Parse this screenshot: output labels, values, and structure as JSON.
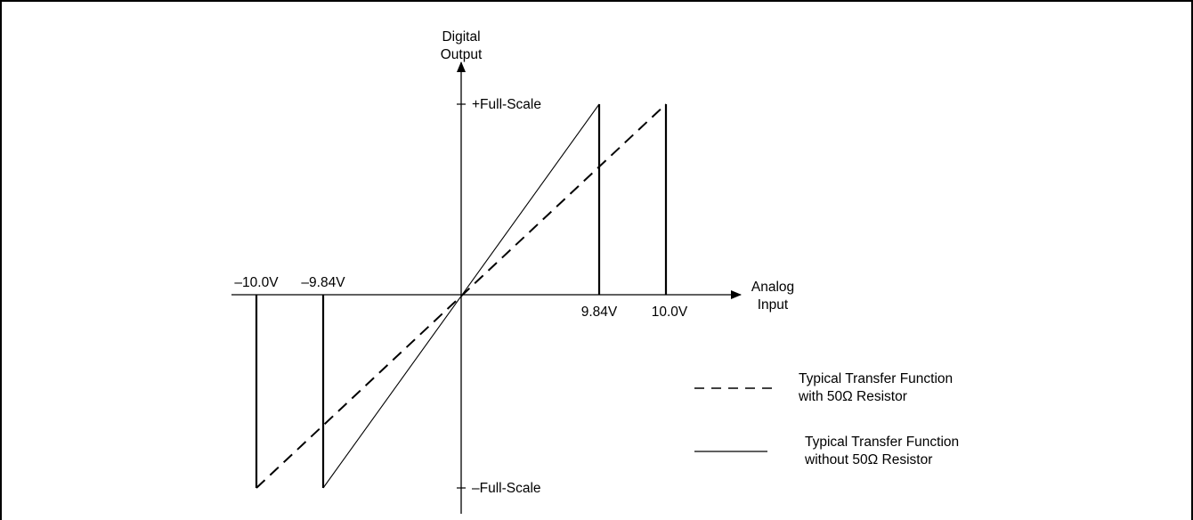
{
  "diagram": {
    "y_axis_label": [
      "Digital",
      "Output"
    ],
    "x_axis_label": [
      "Analog",
      "Input"
    ],
    "pos_full_scale": "+Full-Scale",
    "neg_full_scale": "–Full-Scale",
    "tick_labels": {
      "neg_10": "–10.0V",
      "neg_984": "–9.84V",
      "pos_984": "9.84V",
      "pos_10": "10.0V"
    },
    "legend": [
      {
        "style": "dashed",
        "lines": [
          "Typical Transfer Function",
          "with 50Ω Resistor"
        ]
      },
      {
        "style": "solid",
        "lines": [
          "Typical Transfer Function",
          "without 50Ω Resistor"
        ]
      }
    ]
  },
  "chart_data": {
    "type": "line",
    "xlabel": "Analog Input",
    "ylabel": "Digital Output",
    "series": [
      {
        "name": "Typical Transfer Function with 50Ω Resistor",
        "style": "dashed",
        "points": [
          [
            -10.0,
            -1
          ],
          [
            10.0,
            1
          ]
        ]
      },
      {
        "name": "Typical Transfer Function without 50Ω Resistor",
        "style": "solid",
        "points": [
          [
            -9.84,
            -1
          ],
          [
            9.84,
            1
          ]
        ]
      }
    ],
    "x_ticks": [
      "–10.0V",
      "–9.84V",
      "9.84V",
      "10.0V"
    ],
    "y_ticks": [
      "+Full-Scale",
      "–Full-Scale"
    ]
  }
}
